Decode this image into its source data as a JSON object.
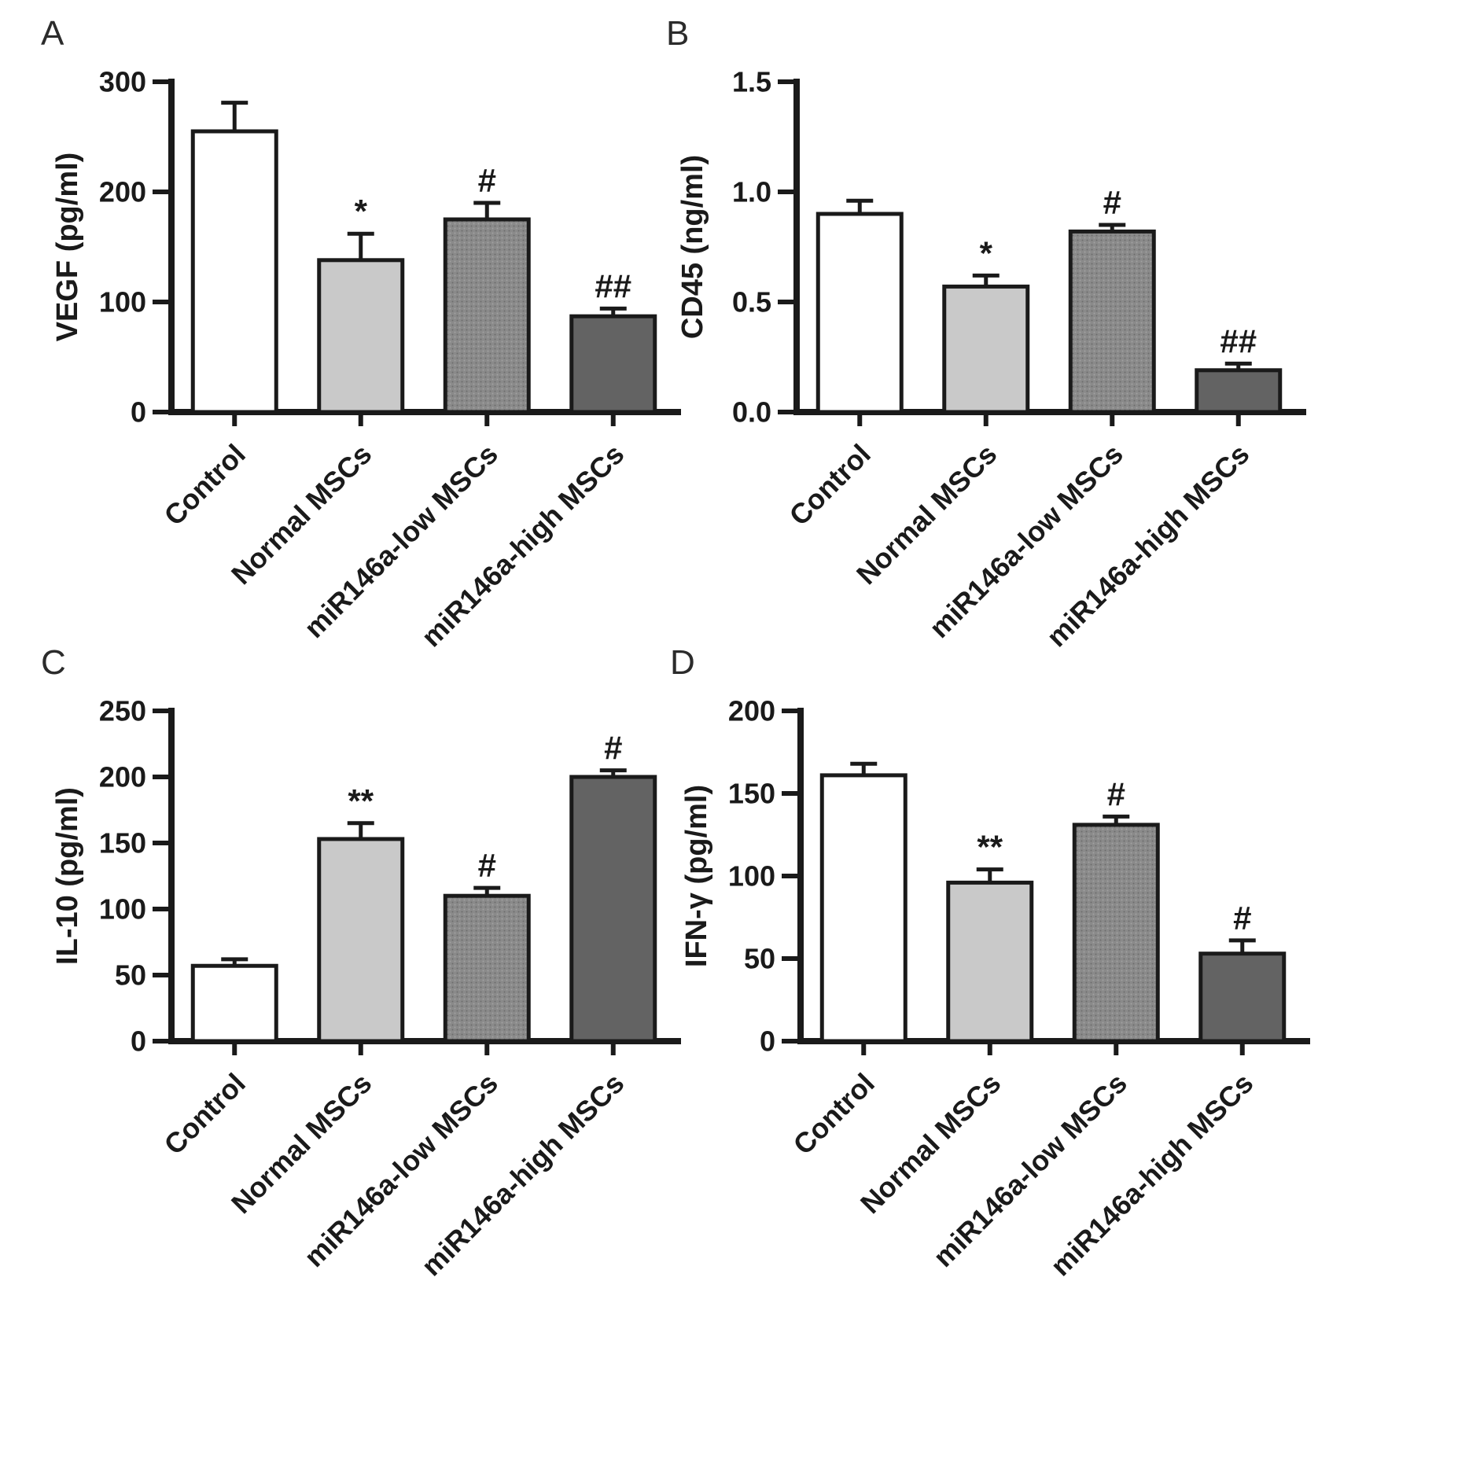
{
  "figure": {
    "background": "#ffffff",
    "axis_color": "#1a1a1a",
    "bar_styles": [
      {
        "fill": "#ffffff"
      },
      {
        "fill": "#c9c9c9"
      },
      {
        "fill": "#8a8a8a",
        "texture": "dots"
      },
      {
        "fill": "#636363"
      }
    ]
  },
  "chart_data": [
    {
      "type": "bar",
      "panel": "A",
      "ylabel": "VEGF (pg/ml)",
      "xlabel": "",
      "categories": [
        "Control",
        "Normal MSCs",
        "miR146a-low MSCs",
        "miR146a-high MSCs"
      ],
      "values": [
        255,
        138,
        175,
        87
      ],
      "errors": [
        26,
        24,
        15,
        7
      ],
      "annotations": [
        "",
        "*",
        "#",
        "##"
      ],
      "ylim": [
        0,
        300
      ],
      "yticks": [
        "0",
        "100",
        "200",
        "300"
      ],
      "grid": false,
      "legend": "none"
    },
    {
      "type": "bar",
      "panel": "B",
      "ylabel": "CD45 (ng/ml)",
      "xlabel": "",
      "categories": [
        "Control",
        "Normal MSCs",
        "miR146a-low MSCs",
        "miR146a-high MSCs"
      ],
      "values": [
        0.9,
        0.57,
        0.82,
        0.19
      ],
      "errors": [
        0.06,
        0.05,
        0.03,
        0.03
      ],
      "annotations": [
        "",
        "*",
        "#",
        "##"
      ],
      "ylim": [
        0,
        1.5
      ],
      "yticks": [
        "0.0",
        "0.5",
        "1.0",
        "1.5"
      ],
      "grid": false,
      "legend": "none"
    },
    {
      "type": "bar",
      "panel": "C",
      "ylabel": "IL-10 (pg/ml)",
      "xlabel": "",
      "categories": [
        "Control",
        "Normal MSCs",
        "miR146a-low MSCs",
        "miR146a-high MSCs"
      ],
      "values": [
        57,
        153,
        110,
        200
      ],
      "errors": [
        5,
        12,
        6,
        5
      ],
      "annotations": [
        "",
        "**",
        "#",
        "#"
      ],
      "ylim": [
        0,
        250
      ],
      "yticks": [
        "0",
        "50",
        "100",
        "150",
        "200",
        "250"
      ],
      "grid": false,
      "legend": "none"
    },
    {
      "type": "bar",
      "panel": "D",
      "ylabel": "IFN-γ (pg/ml)",
      "xlabel": "",
      "categories": [
        "Control",
        "Normal MSCs",
        "miR146a-low MSCs",
        "miR146a-high MSCs"
      ],
      "values": [
        161,
        96,
        131,
        53
      ],
      "errors": [
        7,
        8,
        5,
        8
      ],
      "annotations": [
        "",
        "**",
        "#",
        "#"
      ],
      "ylim": [
        0,
        200
      ],
      "yticks": [
        "0",
        "50",
        "100",
        "150",
        "200"
      ],
      "grid": false,
      "legend": "none"
    }
  ]
}
